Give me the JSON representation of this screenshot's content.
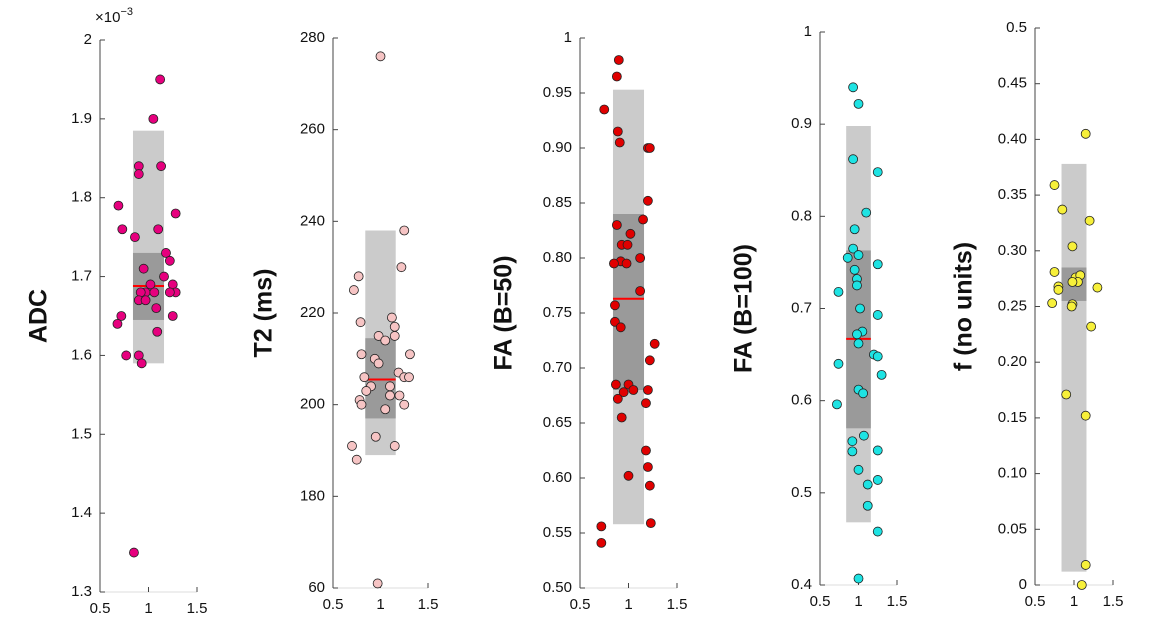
{
  "chart_data": [
    {
      "type": "strip",
      "ylabel": "ADC",
      "color": "#e6007e",
      "axis_multiplier": {
        "base": "×10",
        "exponent": "−3"
      },
      "xlim": [
        0.5,
        1.5
      ],
      "xticks": [
        0.5,
        1,
        1.5
      ],
      "ylim": [
        1.3,
        2
      ],
      "yticks": [
        2,
        1.9,
        1.8,
        1.7,
        1.6,
        1.5,
        1.4,
        1.3
      ],
      "box": {
        "range": [
          1.59,
          1.885
        ],
        "iqr": [
          1.645,
          1.73
        ],
        "median": 1.688
      },
      "x": [
        1.12,
        1.05,
        0.9,
        0.9,
        1.13,
        0.69,
        1.28,
        1.1,
        0.86,
        0.73,
        1.18,
        1.22,
        0.95,
        1.16,
        1.25,
        1.02,
        0.97,
        0.92,
        1.28,
        1.06,
        1.22,
        0.9,
        1.08,
        0.97,
        1.25,
        0.72,
        0.68,
        1.09,
        0.9,
        0.77,
        0.93,
        0.85
      ],
      "y": [
        1.95,
        1.9,
        1.84,
        1.83,
        1.84,
        1.79,
        1.78,
        1.76,
        1.75,
        1.76,
        1.73,
        1.72,
        1.71,
        1.7,
        1.69,
        1.69,
        1.68,
        1.68,
        1.68,
        1.68,
        1.68,
        1.67,
        1.66,
        1.67,
        1.65,
        1.65,
        1.64,
        1.63,
        1.6,
        1.6,
        1.59,
        1.35
      ]
    },
    {
      "type": "strip",
      "ylabel": "T2 (ms)",
      "color": "#f6c4c4",
      "xlim": [
        0.5,
        1.5
      ],
      "xticks": [
        0.5,
        1,
        1.5
      ],
      "ylim": [
        160,
        280
      ],
      "yticks": [
        280,
        260,
        240,
        220,
        200,
        180,
        {
          "value": 160,
          "label": "60"
        }
      ],
      "box": {
        "range": [
          189,
          238
        ],
        "iqr": [
          197,
          214.5
        ],
        "median": 205.5
      },
      "x": [
        1.0,
        1.25,
        1.22,
        0.77,
        0.72,
        1.12,
        0.79,
        1.15,
        1.15,
        0.98,
        1.05,
        0.8,
        1.31,
        0.94,
        0.98,
        1.19,
        0.83,
        1.25,
        1.3,
        0.9,
        1.1,
        0.85,
        1.2,
        1.1,
        0.78,
        0.8,
        1.25,
        1.05,
        0.95,
        0.7,
        1.15,
        0.75,
        0.97
      ],
      "y": [
        276,
        238,
        230,
        228,
        225,
        219,
        218,
        217,
        215,
        215,
        214,
        211,
        211,
        210,
        209,
        207,
        206,
        206,
        206,
        204,
        204,
        203,
        202,
        202,
        201,
        200,
        200,
        199,
        193,
        191,
        191,
        188,
        161
      ]
    },
    {
      "type": "strip",
      "ylabel": "FA (B=50)",
      "color": "#e00000",
      "xlim": [
        0.5,
        1.5
      ],
      "xticks": [
        0.5,
        1,
        1.5
      ],
      "ylim": [
        0.5,
        1
      ],
      "yticks": [
        1,
        0.95,
        {
          "value": 0.9,
          "label": "0.90"
        },
        0.85,
        {
          "value": 0.8,
          "label": "0.80"
        },
        0.75,
        {
          "value": 0.7,
          "label": "0.70"
        },
        0.65,
        {
          "value": 0.6,
          "label": "0.60"
        },
        0.55,
        {
          "value": 0.5,
          "label": "0.50"
        }
      ],
      "box": {
        "range": [
          0.558,
          0.953
        ],
        "iqr": [
          0.68,
          0.84
        ],
        "median": 0.763
      },
      "x": [
        0.9,
        0.88,
        0.75,
        0.89,
        0.91,
        1.2,
        1.22,
        1.2,
        1.15,
        0.88,
        1.02,
        0.93,
        0.99,
        0.92,
        0.98,
        0.85,
        1.12,
        1.12,
        0.86,
        0.86,
        0.92,
        1.27,
        1.22,
        0.87,
        1.0,
        1.05,
        0.95,
        1.2,
        0.89,
        1.18,
        0.93,
        1.18,
        1.0,
        1.2,
        1.22,
        0.72,
        1.23,
        0.72
      ],
      "y": [
        0.98,
        0.965,
        0.935,
        0.915,
        0.905,
        0.9,
        0.9,
        0.852,
        0.835,
        0.83,
        0.822,
        0.812,
        0.812,
        0.797,
        0.795,
        0.795,
        0.8,
        0.77,
        0.757,
        0.742,
        0.737,
        0.722,
        0.707,
        0.685,
        0.685,
        0.68,
        0.678,
        0.68,
        0.672,
        0.668,
        0.655,
        0.625,
        0.602,
        0.61,
        0.593,
        0.556,
        0.559,
        0.541
      ]
    },
    {
      "type": "strip",
      "ylabel": "FA (B=100)",
      "color": "#1ee3e3",
      "xlim": [
        0.5,
        1.5
      ],
      "xticks": [
        0.5,
        1,
        1.5
      ],
      "ylim": [
        0.4,
        1
      ],
      "yticks": [
        1,
        0.9,
        0.8,
        0.7,
        0.6,
        0.5,
        0.4
      ],
      "box": {
        "range": [
          0.468,
          0.898
        ],
        "iqr": [
          0.57,
          0.763
        ],
        "median": 0.667
      },
      "x": [
        0.93,
        1.0,
        0.93,
        1.25,
        1.1,
        0.95,
        0.86,
        0.93,
        1.0,
        1.25,
        0.95,
        0.98,
        0.98,
        0.74,
        1.02,
        1.25,
        1.05,
        0.98,
        1.0,
        1.2,
        1.25,
        0.74,
        1.3,
        1.0,
        1.06,
        0.72,
        1.07,
        0.92,
        1.25,
        0.92,
        1.0,
        1.12,
        1.25,
        1.12,
        1.25,
        1.0
      ],
      "y": [
        0.94,
        0.922,
        0.862,
        0.848,
        0.804,
        0.786,
        0.755,
        0.765,
        0.758,
        0.748,
        0.742,
        0.732,
        0.725,
        0.718,
        0.7,
        0.693,
        0.675,
        0.672,
        0.662,
        0.65,
        0.648,
        0.64,
        0.628,
        0.612,
        0.608,
        0.596,
        0.562,
        0.556,
        0.546,
        0.545,
        0.525,
        0.509,
        0.514,
        0.486,
        0.458,
        0.407
      ]
    },
    {
      "type": "strip",
      "ylabel": "f (no units)",
      "color": "#f7f03a",
      "xlim": [
        0.5,
        1.5
      ],
      "xticks": [
        0.5,
        1,
        1.5
      ],
      "ylim": [
        0,
        0.5
      ],
      "yticks": [
        0.5,
        0.45,
        {
          "value": 0.4,
          "label": "0.40"
        },
        0.35,
        {
          "value": 0.3,
          "label": "0.30"
        },
        0.25,
        {
          "value": 0.2,
          "label": "0.20"
        },
        0.15,
        {
          "value": 0.1,
          "label": "0.10"
        },
        0.05,
        0
      ],
      "box": {
        "range": [
          0.012,
          0.378
        ],
        "iqr": [
          0.255,
          0.285
        ]
      },
      "x": [
        1.15,
        0.75,
        0.85,
        1.2,
        0.98,
        0.75,
        1.02,
        1.08,
        0.8,
        1.05,
        0.8,
        0.98,
        1.3,
        0.72,
        0.98,
        0.97,
        1.22,
        0.9,
        1.15,
        1.15,
        1.1
      ],
      "y": [
        0.405,
        0.359,
        0.337,
        0.327,
        0.304,
        0.281,
        0.276,
        0.278,
        0.268,
        0.272,
        0.265,
        0.272,
        0.267,
        0.253,
        0.252,
        0.25,
        0.232,
        0.171,
        0.152,
        0.018,
        0.0
      ]
    }
  ]
}
